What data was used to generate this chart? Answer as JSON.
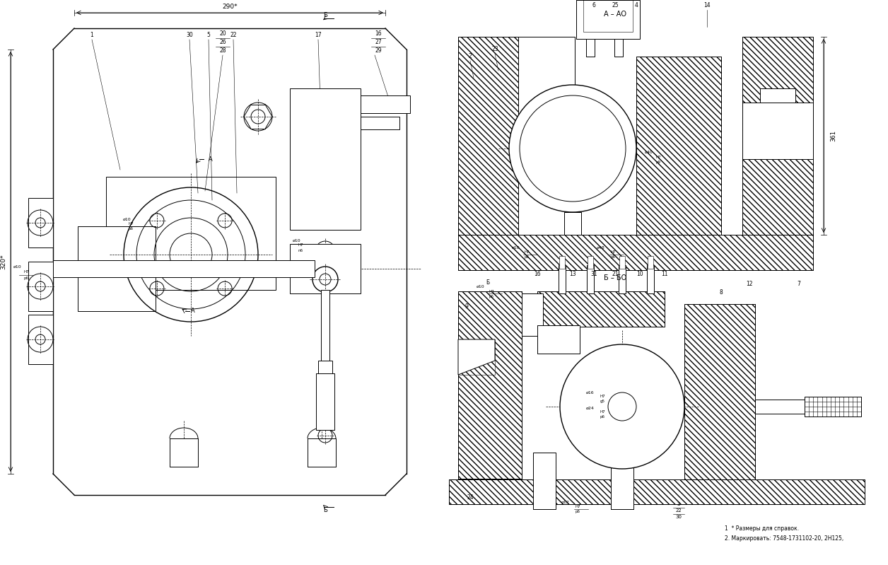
{
  "bg_color": "#ffffff",
  "notes": [
    "1  * Размеры для справок.",
    "2. Маркировать: 7548-1731102-20, 2Н125,"
  ],
  "dim_290": "290*",
  "dim_320": "320*",
  "dim_361": "361"
}
